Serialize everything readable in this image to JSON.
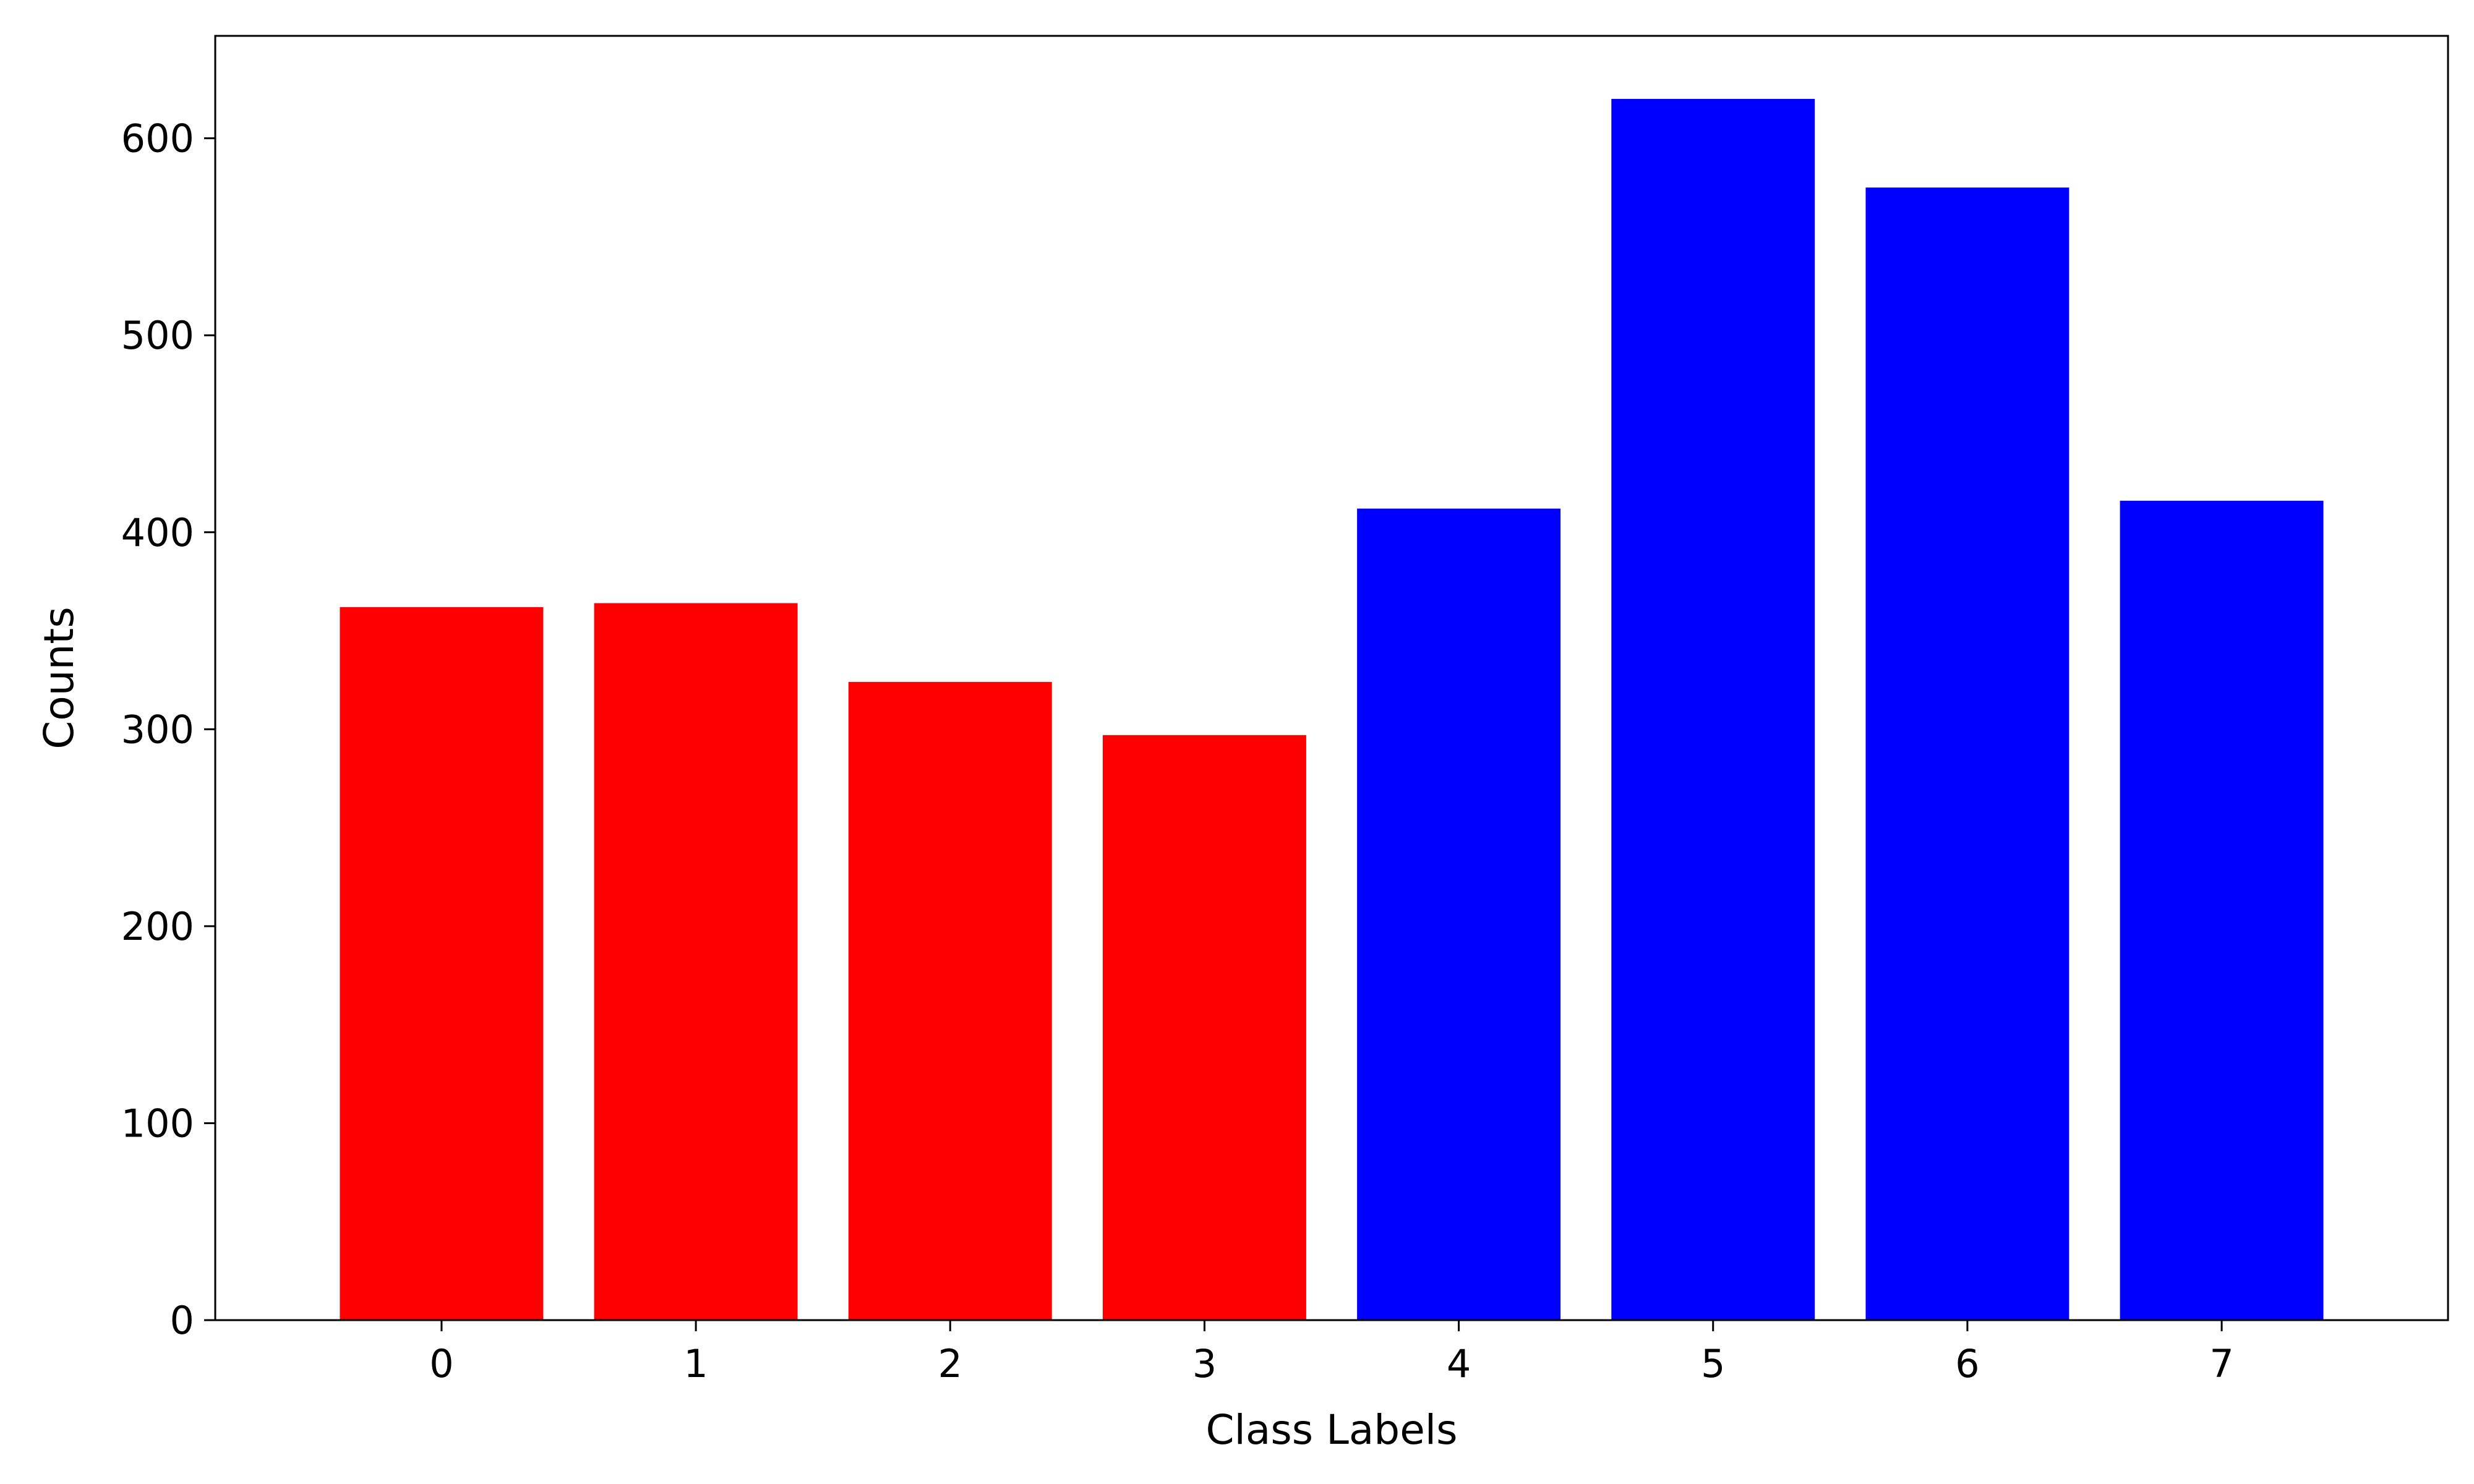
{
  "chart_data": {
    "type": "bar",
    "categories": [
      "0",
      "1",
      "2",
      "3",
      "4",
      "5",
      "6",
      "7"
    ],
    "values": [
      362,
      364,
      324,
      297,
      412,
      620,
      575,
      416
    ],
    "bar_colors": [
      "#ff0000",
      "#ff0000",
      "#ff0000",
      "#ff0000",
      "#0000ff",
      "#0000ff",
      "#0000ff",
      "#0000ff"
    ],
    "title": "",
    "xlabel": "Class Labels",
    "ylabel": "Counts",
    "ylim": [
      0,
      652
    ],
    "yticks": [
      "0",
      "100",
      "200",
      "300",
      "400",
      "500",
      "600"
    ],
    "grid": false,
    "legend": "none"
  }
}
